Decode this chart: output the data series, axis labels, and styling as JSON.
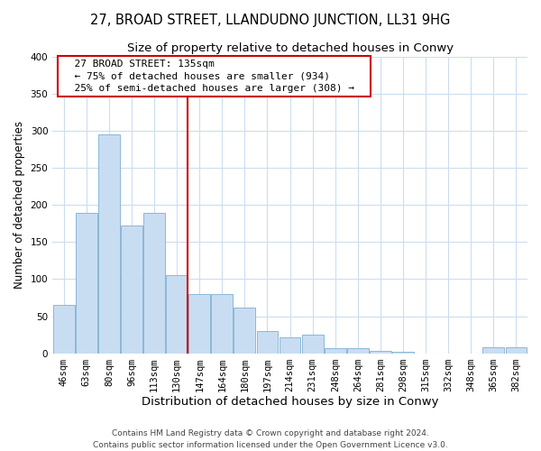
{
  "title": "27, BROAD STREET, LLANDUDNO JUNCTION, LL31 9HG",
  "subtitle": "Size of property relative to detached houses in Conwy",
  "xlabel": "Distribution of detached houses by size in Conwy",
  "ylabel": "Number of detached properties",
  "bar_labels": [
    "46sqm",
    "63sqm",
    "80sqm",
    "96sqm",
    "113sqm",
    "130sqm",
    "147sqm",
    "164sqm",
    "180sqm",
    "197sqm",
    "214sqm",
    "231sqm",
    "248sqm",
    "264sqm",
    "281sqm",
    "298sqm",
    "315sqm",
    "332sqm",
    "348sqm",
    "365sqm",
    "382sqm"
  ],
  "bar_values": [
    65,
    190,
    295,
    172,
    190,
    105,
    80,
    80,
    62,
    30,
    22,
    25,
    7,
    7,
    3,
    2,
    0,
    0,
    0,
    8,
    8
  ],
  "bar_color": "#c9ddf2",
  "bar_edge_color": "#7bafd4",
  "vline_x_index": 5,
  "vline_color": "#cc0000",
  "annotation_title": "27 BROAD STREET: 135sqm",
  "annotation_line1": "← 75% of detached houses are smaller (934)",
  "annotation_line2": "25% of semi-detached houses are larger (308) →",
  "ylim": [
    0,
    400
  ],
  "yticks": [
    0,
    50,
    100,
    150,
    200,
    250,
    300,
    350,
    400
  ],
  "footnote1": "Contains HM Land Registry data © Crown copyright and database right 2024.",
  "footnote2": "Contains public sector information licensed under the Open Government Licence v3.0.",
  "grid_color": "#ccddee",
  "title_fontsize": 10.5,
  "subtitle_fontsize": 9.5,
  "xlabel_fontsize": 9.5,
  "ylabel_fontsize": 8.5,
  "tick_fontsize": 7.5,
  "annot_fontsize": 8,
  "footnote_fontsize": 6.5
}
